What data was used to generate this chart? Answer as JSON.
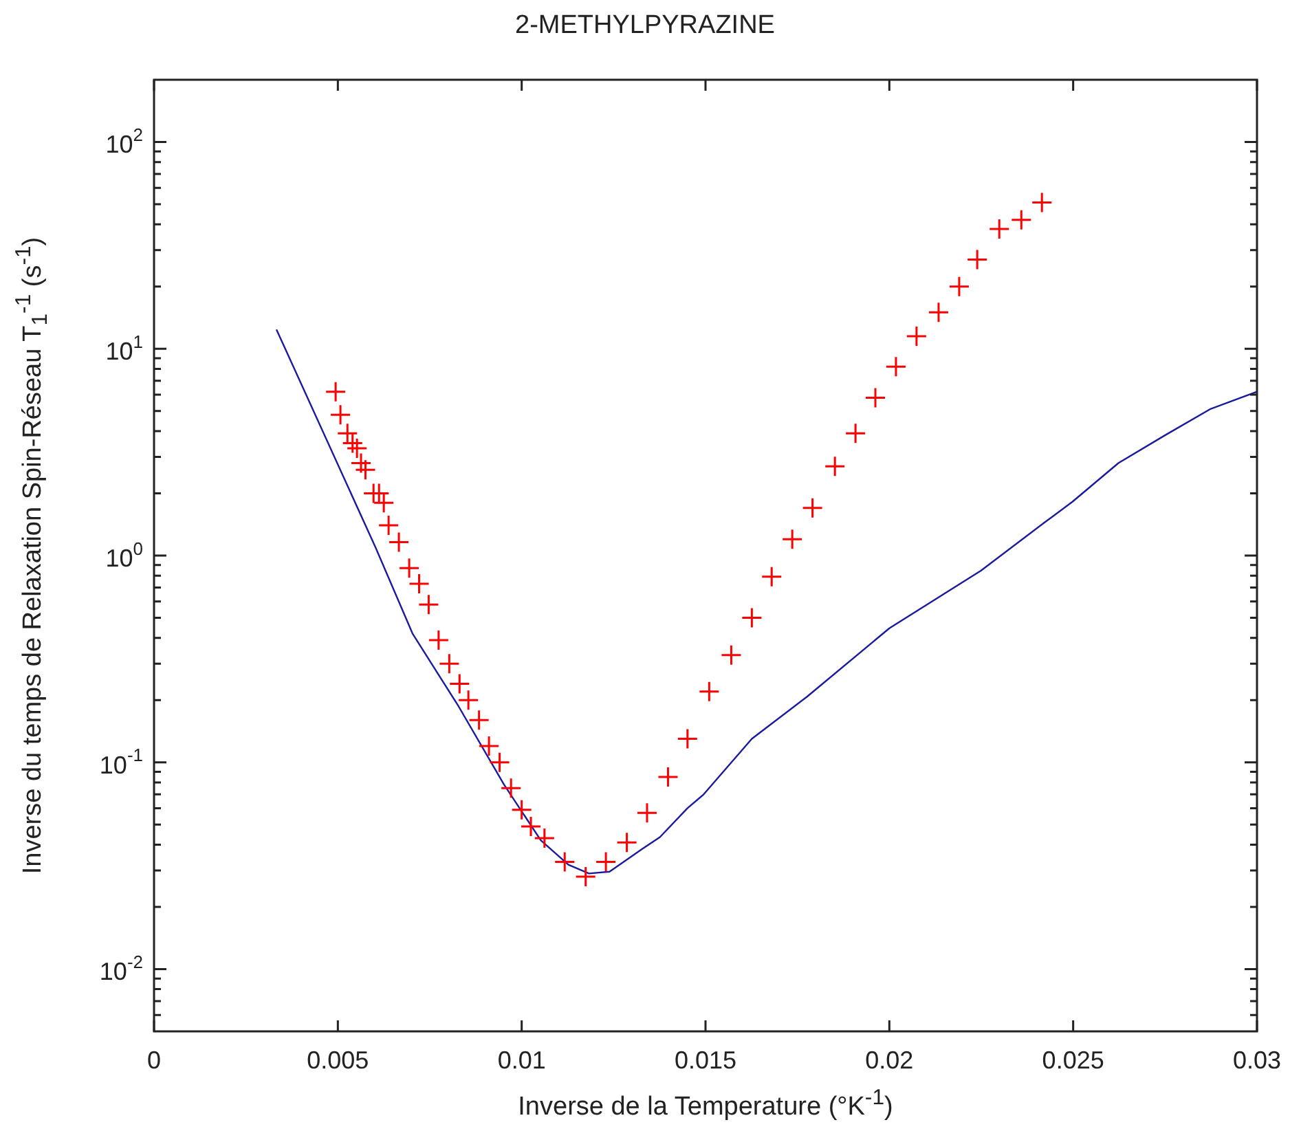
{
  "chart_data": {
    "type": "scatter",
    "title": "2-METHYLPYRAZINE",
    "xlabel": "Inverse de la Temperature (°K$^{-1}$)",
    "ylabel": "Inverse du temps de Relaxation Spin-Réseau T$_{1}$$^{-1}$ (s$^{-1}$)",
    "log": "y",
    "xlim": [
      0,
      0.03
    ],
    "xticks": [
      0,
      0.005,
      0.01,
      0.015,
      0.02,
      0.025,
      0.03
    ],
    "ylim": [
      0.005,
      200
    ],
    "yticks": [
      {
        "value": 0.006,
        "label": null
      },
      {
        "value": 0.007,
        "label": null
      },
      {
        "value": 0.008,
        "label": null
      },
      {
        "value": 0.009,
        "label": null
      },
      {
        "value": 0.01,
        "label": "10$^{-2}$"
      },
      {
        "value": 0.02,
        "label": null
      },
      {
        "value": 0.03,
        "label": null
      },
      {
        "value": 0.04,
        "label": null
      },
      {
        "value": 0.05,
        "label": null
      },
      {
        "value": 0.06,
        "label": null
      },
      {
        "value": 0.07,
        "label": null
      },
      {
        "value": 0.08,
        "label": null
      },
      {
        "value": 0.09,
        "label": null
      },
      {
        "value": 0.1,
        "label": "10$^{-1}$"
      },
      {
        "value": 0.2,
        "label": null
      },
      {
        "value": 0.3,
        "label": null
      },
      {
        "value": 0.4,
        "label": null
      },
      {
        "value": 0.5,
        "label": null
      },
      {
        "value": 0.6,
        "label": null
      },
      {
        "value": 0.7,
        "label": null
      },
      {
        "value": 0.8,
        "label": null
      },
      {
        "value": 0.9,
        "label": null
      },
      {
        "value": 1,
        "label": "10$^{0}$"
      },
      {
        "value": 2,
        "label": null
      },
      {
        "value": 3,
        "label": null
      },
      {
        "value": 4,
        "label": null
      },
      {
        "value": 5,
        "label": null
      },
      {
        "value": 6,
        "label": null
      },
      {
        "value": 7,
        "label": null
      },
      {
        "value": 8,
        "label": null
      },
      {
        "value": 9,
        "label": null
      },
      {
        "value": 10,
        "label": "10$^{1}$"
      },
      {
        "value": 20,
        "label": null
      },
      {
        "value": 30,
        "label": null
      },
      {
        "value": 40,
        "label": null
      },
      {
        "value": 50,
        "label": null
      },
      {
        "value": 60,
        "label": null
      },
      {
        "value": 70,
        "label": null
      },
      {
        "value": 80,
        "label": null
      },
      {
        "value": 90,
        "label": null
      },
      {
        "value": 100,
        "label": "10$^{2}$"
      }
    ],
    "series": [
      {
        "marker": "cross",
        "color": "#ff0000",
        "x": [
          0.00494,
          0.00507,
          0.00526,
          0.0054,
          0.00552,
          0.00563,
          0.00575,
          0.00597,
          0.00612,
          0.00625,
          0.00638,
          0.00666,
          0.00694,
          0.00721,
          0.00747,
          0.00774,
          0.00803,
          0.00831,
          0.00855,
          0.00884,
          0.00911,
          0.0094,
          0.00971,
          0.01,
          0.01025,
          0.01062,
          0.01117,
          0.01174,
          0.01229,
          0.01286,
          0.01341,
          0.01398,
          0.01451,
          0.0151,
          0.0157,
          0.01626,
          0.0168,
          0.01736,
          0.01791,
          0.01852,
          0.01908,
          0.01962,
          0.02018,
          0.02074,
          0.02134,
          0.0219,
          0.02239,
          0.02299,
          0.02359,
          0.02415
        ],
        "values": [
          6.2,
          4.8,
          3.9,
          3.5,
          3.3,
          2.8,
          2.6,
          2.0,
          2.0,
          1.8,
          1.4,
          1.16,
          0.87,
          0.73,
          0.58,
          0.39,
          0.3,
          0.24,
          0.2,
          0.16,
          0.12,
          0.1,
          0.075,
          0.059,
          0.049,
          0.043,
          0.033,
          0.028,
          0.033,
          0.041,
          0.057,
          0.085,
          0.13,
          0.22,
          0.33,
          0.5,
          0.79,
          1.2,
          1.7,
          2.7,
          3.9,
          5.8,
          8.2,
          11.5,
          15,
          20,
          27,
          38,
          42,
          51
        ]
      },
      {
        "type": "line",
        "marker": "none",
        "color": "#1a1aa0",
        "x": [
          0.00333,
          0.00603,
          0.00703,
          0.00828,
          0.00952,
          0.01052,
          0.01127,
          0.01183,
          0.01239,
          0.01327,
          0.01376,
          0.01451,
          0.01495,
          0.01626,
          0.01775,
          0.02,
          0.02249,
          0.02423,
          0.02498,
          0.02623,
          0.02748,
          0.02872,
          0.03
        ],
        "values": [
          12.4,
          1.09,
          0.42,
          0.187,
          0.078,
          0.042,
          0.032,
          0.029,
          0.0296,
          0.038,
          0.0435,
          0.06,
          0.07,
          0.13,
          0.207,
          0.445,
          0.845,
          1.45,
          1.82,
          2.8,
          3.8,
          5.1,
          6.2
        ]
      }
    ]
  }
}
